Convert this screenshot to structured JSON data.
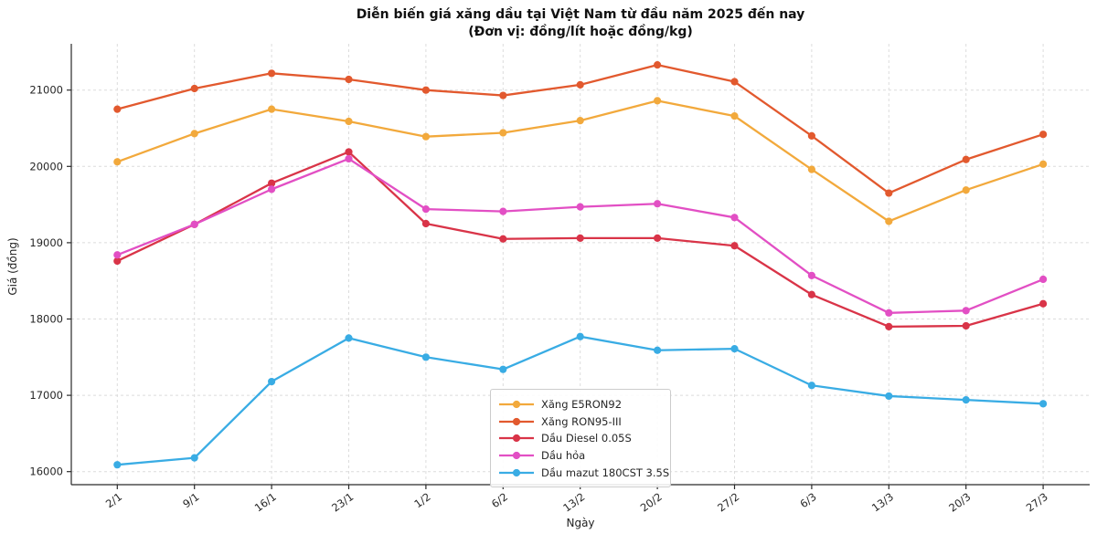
{
  "title": "Diễn biến giá xăng dầu tại Việt Nam từ đầu năm 2025 đến nay",
  "subtitle": "(Đơn vị: đồng/lít hoặc đồng/kg)",
  "chart_data": {
    "type": "line",
    "title": "Diễn biến giá xăng dầu tại Việt Nam từ đầu năm 2025 đến nay",
    "subtitle": "(Đơn vị: đồng/lít hoặc đồng/kg)",
    "xlabel": "Ngày",
    "ylabel": "Giá (đồng)",
    "grid": true,
    "legend_position": "inside lower-center",
    "ylim": [
      15820,
      21590
    ],
    "yticks": [
      16000,
      17000,
      18000,
      19000,
      20000,
      21000
    ],
    "categories": [
      "2/1",
      "9/1",
      "16/1",
      "23/1",
      "1/2",
      "6/2",
      "13/2",
      "20/2",
      "27/2",
      "6/3",
      "13/3",
      "20/3",
      "27/3"
    ],
    "series": [
      {
        "name": "Xăng E5RON92",
        "color": "#F2A93C",
        "values": [
          20060,
          20430,
          20750,
          20590,
          20390,
          20440,
          20600,
          20860,
          20660,
          19960,
          19280,
          19690,
          20030
        ]
      },
      {
        "name": "Xăng RON95-III",
        "color": "#E2592E",
        "values": [
          20750,
          21020,
          21220,
          21140,
          21000,
          20930,
          21070,
          21330,
          21110,
          20400,
          19650,
          20090,
          20420
        ]
      },
      {
        "name": "Dầu Diesel 0.05S",
        "color": "#D93448",
        "values": [
          18760,
          19240,
          19780,
          20190,
          19250,
          19050,
          19060,
          19060,
          18960,
          18320,
          17900,
          17910,
          18200
        ]
      },
      {
        "name": "Dầu hỏa",
        "color": "#E24FC4",
        "values": [
          18840,
          19240,
          19700,
          20100,
          19440,
          19410,
          19470,
          19510,
          19330,
          18570,
          18080,
          18110,
          18520
        ]
      },
      {
        "name": "Dầu mazut 180CST 3.5S",
        "color": "#39ACE4",
        "values": [
          16090,
          16180,
          17180,
          17750,
          17500,
          17340,
          17770,
          17590,
          17610,
          17130,
          16990,
          16940,
          16890
        ]
      }
    ]
  }
}
